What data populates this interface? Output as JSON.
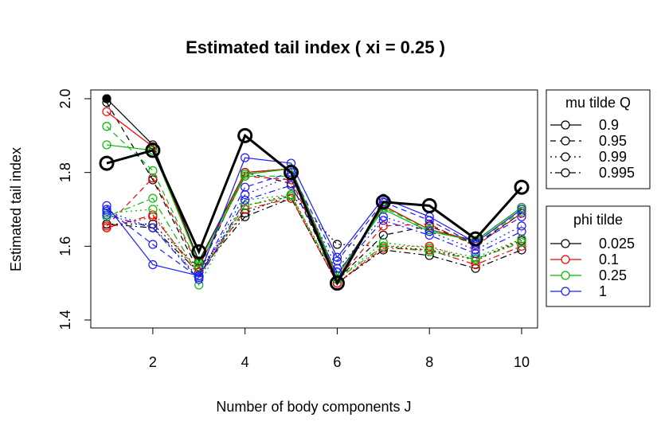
{
  "chart_data": {
    "type": "line",
    "title": "Estimated tail index ( xi = 0.25 )",
    "xlabel": "Number of body components J",
    "ylabel": "Estimated tail index",
    "xlim": [
      1,
      10
    ],
    "ylim": [
      1.4,
      2.0
    ],
    "x": [
      1,
      2,
      3,
      4,
      5,
      6,
      7,
      8,
      9,
      10
    ],
    "x_ticks": [
      "2",
      "4",
      "6",
      "8",
      "10"
    ],
    "x_tick_values": [
      2,
      4,
      6,
      8,
      10
    ],
    "y_ticks": [
      "1.4",
      "1.6",
      "1.8",
      "2.0"
    ],
    "y_tick_values": [
      1.4,
      1.6,
      1.8,
      2.0
    ],
    "legend_mu": {
      "title": "mu tilde Q",
      "entries": [
        {
          "label": "0.9",
          "dash": "solid"
        },
        {
          "label": "0.95",
          "dash": "dashed"
        },
        {
          "label": "0.99",
          "dash": "dotted"
        },
        {
          "label": "0.995",
          "dash": "dotdash"
        }
      ]
    },
    "legend_phi": {
      "title": "phi tilde",
      "entries": [
        {
          "label": "0.025",
          "color": "#000000"
        },
        {
          "label": "0.1",
          "color": "#ee0000"
        },
        {
          "label": "0.25",
          "color": "#00bb00"
        },
        {
          "label": "1",
          "color": "#1a1aff"
        }
      ]
    },
    "highlight_filled_point": {
      "x": 1,
      "y": 2.0
    },
    "series": [
      {
        "mu": "0.9",
        "phi": "0.025",
        "dash": "solid",
        "color": "#000000",
        "bold": true,
        "values": [
          1.825,
          1.86,
          1.585,
          1.9,
          1.8,
          1.5,
          1.72,
          1.71,
          1.62,
          1.76
        ]
      },
      {
        "mu": "0.9",
        "phi": "0.025",
        "dash": "solid",
        "color": "#000000",
        "bold": false,
        "values": [
          2.0,
          1.875,
          1.56,
          1.8,
          1.81,
          1.52,
          1.71,
          1.645,
          1.615,
          1.705
        ]
      },
      {
        "mu": "0.95",
        "phi": "0.025",
        "dash": "dashed",
        "color": "#000000",
        "bold": false,
        "values": [
          1.99,
          1.78,
          1.53,
          1.8,
          1.77,
          1.51,
          1.63,
          1.655,
          1.605,
          1.69
        ]
      },
      {
        "mu": "0.99",
        "phi": "0.025",
        "dash": "dotted",
        "color": "#000000",
        "bold": false,
        "values": [
          1.66,
          1.66,
          1.54,
          1.69,
          1.74,
          1.605,
          1.6,
          1.59,
          1.565,
          1.615
        ]
      },
      {
        "mu": "0.995",
        "phi": "0.025",
        "dash": "dotdash",
        "color": "#000000",
        "bold": false,
        "values": [
          1.66,
          1.65,
          1.53,
          1.68,
          1.73,
          1.5,
          1.59,
          1.575,
          1.54,
          1.59
        ]
      },
      {
        "mu": "0.9",
        "phi": "0.1",
        "dash": "solid",
        "color": "#ee0000",
        "bold": false,
        "values": [
          1.965,
          1.87,
          1.555,
          1.8,
          1.81,
          1.51,
          1.71,
          1.645,
          1.615,
          1.705
        ]
      },
      {
        "mu": "0.95",
        "phi": "0.1",
        "dash": "dashed",
        "color": "#ee0000",
        "bold": false,
        "values": [
          1.655,
          1.785,
          1.545,
          1.79,
          1.78,
          1.51,
          1.655,
          1.66,
          1.6,
          1.69
        ]
      },
      {
        "mu": "0.99",
        "phi": "0.1",
        "dash": "dotted",
        "color": "#ee0000",
        "bold": false,
        "values": [
          1.65,
          1.68,
          1.53,
          1.71,
          1.74,
          1.5,
          1.6,
          1.6,
          1.56,
          1.62
        ]
      },
      {
        "mu": "0.995",
        "phi": "0.1",
        "dash": "dotdash",
        "color": "#ee0000",
        "bold": false,
        "values": [
          1.65,
          1.685,
          1.52,
          1.7,
          1.73,
          1.5,
          1.595,
          1.59,
          1.55,
          1.6
        ]
      },
      {
        "mu": "0.9",
        "phi": "0.25",
        "dash": "solid",
        "color": "#00bb00",
        "bold": false,
        "values": [
          1.875,
          1.86,
          1.555,
          1.795,
          1.81,
          1.52,
          1.7,
          1.64,
          1.615,
          1.705
        ]
      },
      {
        "mu": "0.95",
        "phi": "0.25",
        "dash": "dashed",
        "color": "#00bb00",
        "bold": false,
        "values": [
          1.925,
          1.805,
          1.545,
          1.79,
          1.79,
          1.52,
          1.705,
          1.645,
          1.61,
          1.695
        ]
      },
      {
        "mu": "0.99",
        "phi": "0.25",
        "dash": "dotted",
        "color": "#00bb00",
        "bold": false,
        "values": [
          1.69,
          1.7,
          1.495,
          1.725,
          1.74,
          1.51,
          1.61,
          1.595,
          1.57,
          1.62
        ]
      },
      {
        "mu": "0.995",
        "phi": "0.25",
        "dash": "dotdash",
        "color": "#00bb00",
        "bold": false,
        "values": [
          1.68,
          1.73,
          1.52,
          1.71,
          1.735,
          1.51,
          1.6,
          1.585,
          1.565,
          1.61
        ]
      },
      {
        "mu": "0.9",
        "phi": "1",
        "dash": "solid",
        "color": "#1a1aff",
        "bold": false,
        "values": [
          1.71,
          1.55,
          1.52,
          1.84,
          1.825,
          1.57,
          1.73,
          1.68,
          1.61,
          1.7
        ]
      },
      {
        "mu": "0.95",
        "phi": "1",
        "dash": "dashed",
        "color": "#1a1aff",
        "bold": false,
        "values": [
          1.7,
          1.605,
          1.515,
          1.76,
          1.8,
          1.56,
          1.72,
          1.67,
          1.605,
          1.68
        ]
      },
      {
        "mu": "0.99",
        "phi": "1",
        "dash": "dotted",
        "color": "#1a1aff",
        "bold": false,
        "values": [
          1.695,
          1.65,
          1.515,
          1.74,
          1.79,
          1.54,
          1.68,
          1.64,
          1.59,
          1.655
        ]
      },
      {
        "mu": "0.995",
        "phi": "1",
        "dash": "dotdash",
        "color": "#1a1aff",
        "bold": false,
        "values": [
          1.685,
          1.65,
          1.51,
          1.725,
          1.765,
          1.53,
          1.67,
          1.63,
          1.58,
          1.64
        ]
      }
    ]
  }
}
